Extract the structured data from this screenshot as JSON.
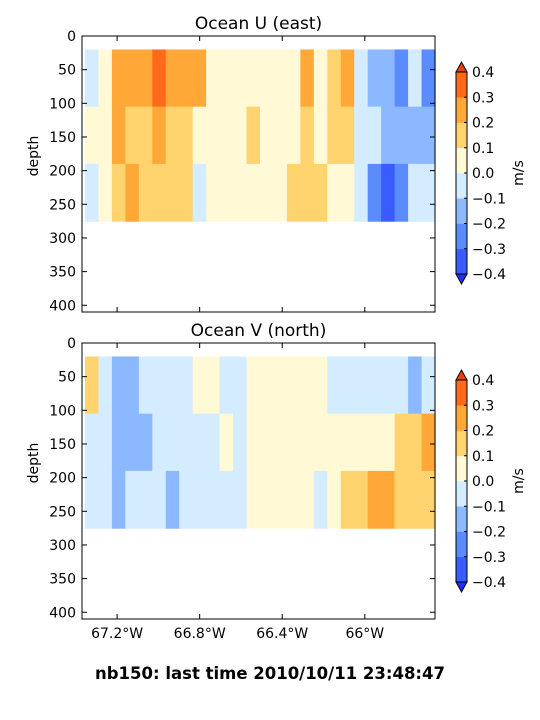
{
  "footer": "nb150: last time 2010/10/11 23:48:47",
  "chart_data": [
    {
      "type": "heatmap",
      "title": "Ocean U (east)",
      "ylabel": "depth",
      "y_ticks": [
        0,
        50,
        100,
        150,
        200,
        250,
        300,
        350,
        400
      ],
      "ylim": [
        410,
        0
      ],
      "y_inverted": true,
      "xlim": [
        -67.37,
        -65.66
      ],
      "x_ticks": [
        -67.2,
        -66.8,
        -66.4,
        -66.0
      ],
      "x_tick_labels": [
        "67.2°W",
        "66.8°W",
        "66.4°W",
        "66°W"
      ],
      "data_depth_range": [
        20,
        275
      ],
      "colorbar": {
        "label": "m/s",
        "ticks": [
          0.4,
          0.3,
          0.2,
          0.1,
          0.0,
          -0.1,
          -0.2,
          -0.3,
          -0.4
        ],
        "tick_labels": [
          "0.4",
          "0.3",
          "0.2",
          "0.1",
          "0.0",
          "−0.1",
          "−0.2",
          "−0.3",
          "−0.4"
        ],
        "extend": "both"
      },
      "columns": [
        [
          -0.05,
          0.0,
          -0.05
        ],
        [
          0.05,
          0.05,
          0.0
        ],
        [
          0.25,
          0.2,
          0.15
        ],
        [
          0.25,
          0.15,
          0.2
        ],
        [
          0.25,
          0.15,
          0.1
        ],
        [
          0.3,
          0.2,
          0.1
        ],
        [
          0.25,
          0.15,
          0.15
        ],
        [
          0.25,
          0.1,
          0.1
        ],
        [
          0.2,
          0.05,
          -0.05
        ],
        [
          0.05,
          0.05,
          0.05
        ],
        [
          0.05,
          0.05,
          0.05
        ],
        [
          0.0,
          0.05,
          0.0
        ],
        [
          0.05,
          0.1,
          0.05
        ],
        [
          0.05,
          0.05,
          0.05
        ],
        [
          0.0,
          0.05,
          0.05
        ],
        [
          0.05,
          0.05,
          0.1
        ],
        [
          0.25,
          0.1,
          0.1
        ],
        [
          0.05,
          0.05,
          0.15
        ],
        [
          0.15,
          0.1,
          0.05
        ],
        [
          0.25,
          0.15,
          0.05
        ],
        [
          -0.05,
          -0.05,
          -0.05
        ],
        [
          -0.15,
          -0.1,
          -0.25
        ],
        [
          -0.15,
          -0.2,
          -0.35
        ],
        [
          -0.25,
          -0.15,
          -0.25
        ],
        [
          -0.1,
          -0.15,
          -0.1
        ],
        [
          -0.3,
          -0.15,
          -0.05
        ]
      ]
    },
    {
      "type": "heatmap",
      "title": "Ocean V (north)",
      "ylabel": "depth",
      "y_ticks": [
        0,
        50,
        100,
        150,
        200,
        250,
        300,
        350,
        400
      ],
      "ylim": [
        410,
        0
      ],
      "y_inverted": true,
      "xlim": [
        -67.37,
        -65.66
      ],
      "x_ticks": [
        -67.2,
        -66.8,
        -66.4,
        -66.0
      ],
      "x_tick_labels": [
        "67.2°W",
        "66.8°W",
        "66.4°W",
        "66°W"
      ],
      "data_depth_range": [
        20,
        275
      ],
      "colorbar": {
        "label": "m/s",
        "ticks": [
          0.4,
          0.3,
          0.2,
          0.1,
          0.0,
          -0.1,
          -0.2,
          -0.3,
          -0.4
        ],
        "tick_labels": [
          "0.4",
          "0.3",
          "0.2",
          "0.1",
          "0.0",
          "−0.1",
          "−0.2",
          "−0.3",
          "−0.4"
        ],
        "extend": "both"
      },
      "columns": [
        [
          0.1,
          -0.05,
          -0.05
        ],
        [
          -0.05,
          -0.1,
          -0.1
        ],
        [
          -0.15,
          -0.2,
          -0.15
        ],
        [
          -0.15,
          -0.15,
          -0.1
        ],
        [
          -0.1,
          -0.15,
          -0.1
        ],
        [
          -0.05,
          -0.05,
          -0.05
        ],
        [
          -0.1,
          -0.1,
          -0.15
        ],
        [
          -0.05,
          -0.1,
          -0.05
        ],
        [
          0.05,
          -0.05,
          -0.05
        ],
        [
          0.05,
          -0.05,
          -0.1
        ],
        [
          -0.05,
          0.05,
          -0.05
        ],
        [
          -0.05,
          -0.05,
          -0.05
        ],
        [
          0.05,
          0.05,
          0.05
        ],
        [
          0.05,
          0.05,
          0.05
        ],
        [
          0.05,
          0.05,
          0.05
        ],
        [
          0.05,
          0.05,
          0.0
        ],
        [
          0.05,
          0.05,
          0.05
        ],
        [
          0.05,
          0.0,
          -0.05
        ],
        [
          -0.05,
          0.05,
          0.05
        ],
        [
          -0.05,
          0.05,
          0.1
        ],
        [
          -0.1,
          0.05,
          0.15
        ],
        [
          -0.1,
          0.05,
          0.2
        ],
        [
          -0.05,
          0.05,
          0.2
        ],
        [
          -0.05,
          0.15,
          0.15
        ],
        [
          -0.15,
          0.15,
          0.15
        ],
        [
          -0.05,
          0.2,
          0.15
        ]
      ]
    }
  ]
}
